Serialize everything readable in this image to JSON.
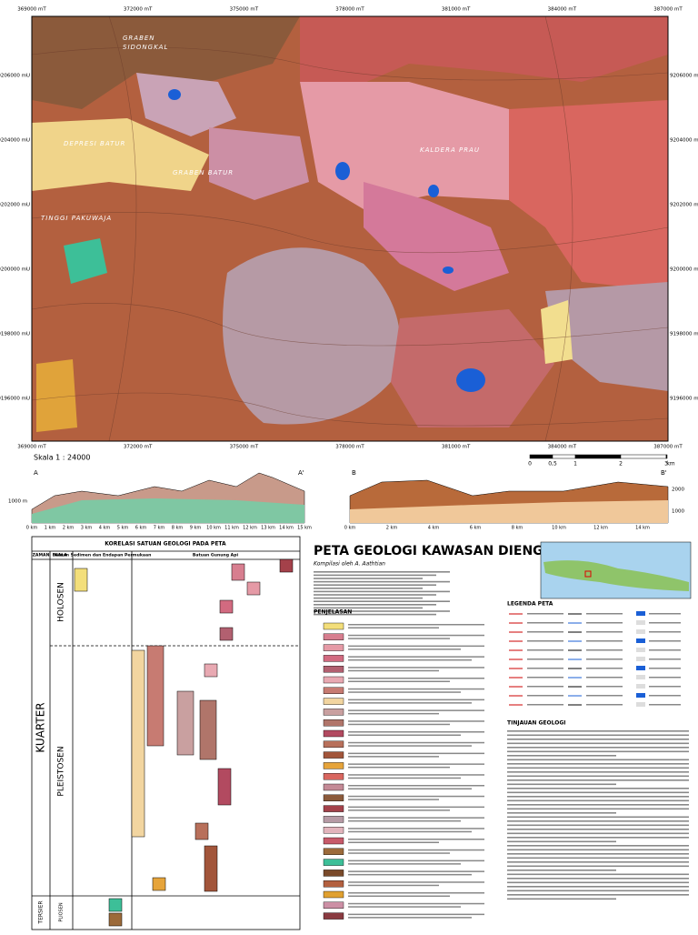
{
  "map": {
    "x_labels": [
      "369000 mT",
      "372000 mT",
      "375000 mT",
      "378000 mT",
      "381000 mT",
      "384000 mT",
      "387000 mT"
    ],
    "y_labels": [
      "9206000 mU",
      "9204000 mU",
      "9202000 mU",
      "9200000 mU",
      "9198000 mU",
      "9196000 mU"
    ],
    "places": [
      "GRABEN",
      "SIDONGKAL",
      "DEPRESI BATUR",
      "GRABEN BATUR",
      "KALDERA PRAU",
      "TINGGI PAKUWAJA"
    ],
    "scale": "Skala 1 : 24000",
    "scale_bar": [
      "0",
      "0,5",
      "1",
      "2",
      "3",
      "km"
    ]
  },
  "sections": {
    "left_ends": [
      "A",
      "A'"
    ],
    "right_ends": [
      "B",
      "B'"
    ],
    "left_elev": "1000 m",
    "right_elev": [
      "2000",
      "1000"
    ],
    "left_km": [
      "0 km",
      "1 km",
      "2 km",
      "3 km",
      "4 km",
      "5 km",
      "6 km",
      "7 km",
      "8 km",
      "9 km",
      "10 km",
      "11 km",
      "12 km",
      "13 km",
      "14 km",
      "15 km"
    ],
    "right_km": [
      "0 km",
      "2 km",
      "4 km",
      "6 km",
      "8 km",
      "10 km",
      "12 km",
      "14 km"
    ]
  },
  "correlation": {
    "title": "KORELASI SATUAN GEOLOGI PADA PETA",
    "headers": [
      "ZAMAN",
      "KALA",
      "Batuan Sedimen dan Endapan Permukaan",
      "Batuan Gunung Api"
    ],
    "periods": [
      "KUARTER",
      "TERSIER"
    ],
    "epochs": [
      "HOLOSEN",
      "PLEISTOSEN",
      "PLIOSEN"
    ]
  },
  "panel": {
    "title": "PETA GEOLOGI KAWASAN DIENG",
    "author": "Kompilasi oleh A. Aathtian",
    "explanation": "PENJELASAN",
    "legend": "LEGENDA PETA",
    "review": "TINJAUAN GEOLOGI",
    "inset": [
      "DKI Jakarta",
      "JAWA",
      "Dataran Tinggi Dieng"
    ]
  }
}
